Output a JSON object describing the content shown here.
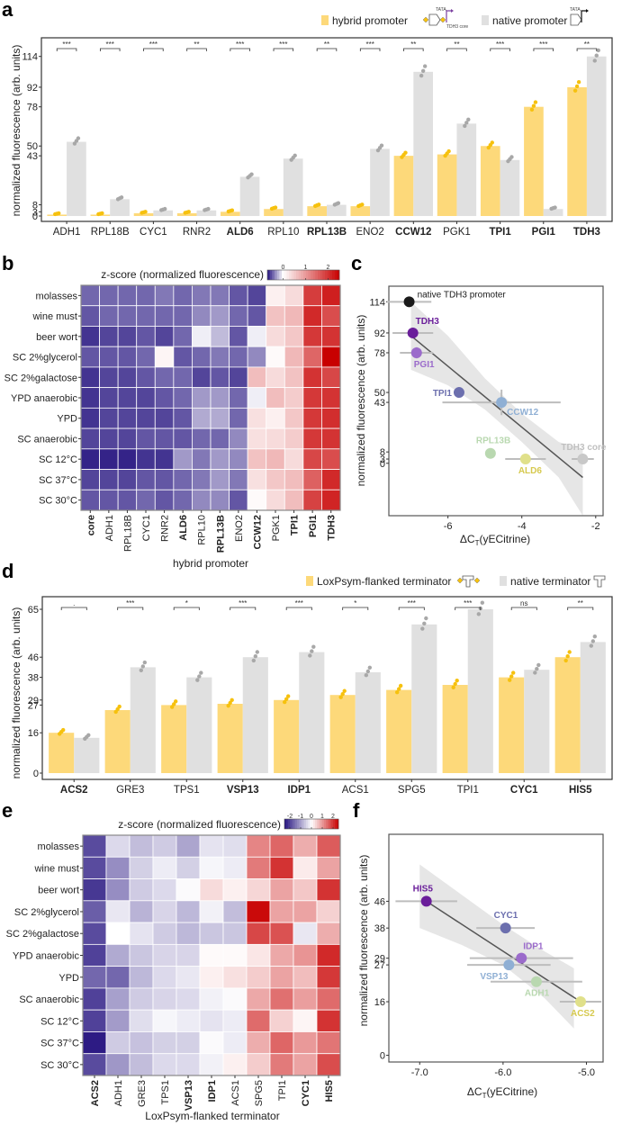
{
  "figure": {
    "panel_letters": [
      "a",
      "b",
      "c",
      "d",
      "e",
      "f"
    ]
  },
  "chart_data": [
    {
      "panel": "a",
      "type": "bar",
      "ylabel": "normalized fluorescence (arb. units)",
      "xlabel": "",
      "yticks": [
        0,
        3,
        8,
        43,
        50,
        78,
        92,
        114
      ],
      "ylim": [
        0,
        128
      ],
      "categories": [
        "ADH1",
        "RPL18B",
        "CYC1",
        "RNR2",
        "ALD6",
        "RPL10",
        "RPL13B",
        "ENO2",
        "CCW12",
        "PGK1",
        "TPI1",
        "PGI1",
        "TDH3"
      ],
      "bold_categories": [
        "ALD6",
        "RPL13B",
        "CCW12",
        "TPI1",
        "PGI1",
        "TDH3"
      ],
      "series": [
        {
          "name": "hybrid promoter",
          "color": "#FDD97A",
          "point_color": "#F6C10E",
          "values": [
            1,
            1,
            2,
            2,
            3,
            5,
            7,
            7,
            43,
            44,
            50,
            78,
            92
          ]
        },
        {
          "name": "native promoter",
          "color": "#E0E0E0",
          "point_color": "#A8A8A8",
          "values": [
            53,
            12,
            4,
            4,
            28,
            41,
            8,
            48,
            103,
            66,
            40,
            5,
            114
          ]
        }
      ],
      "significance": [
        "***",
        "***",
        "***",
        "**",
        "***",
        "***",
        "**",
        "***",
        "**",
        "**",
        "***",
        "***",
        "**"
      ],
      "legend": {
        "position": "top-right",
        "hybrid_label": "hybrid promoter",
        "native_label": "native promoter",
        "icon_text_tata": "TATA",
        "icon_text_core": "TDH3 core"
      }
    },
    {
      "panel": "b",
      "type": "heatmap",
      "title": "z-score (normalized fluorescence)",
      "xlabel": "hybrid promoter",
      "legend_ticks": [
        0,
        1,
        2
      ],
      "zlim": [
        -0.7,
        2.5
      ],
      "rows": [
        "molasses",
        "wine must",
        "beer wort",
        "SC 2%glycerol",
        "SC 2%galactose",
        "YPD anaerobic",
        "YPD",
        "SC anaerobic",
        "SC 12°C",
        "SC 37°C",
        "SC 30°C"
      ],
      "columns": [
        "core",
        "ADH1",
        "RPL18B",
        "CYC1",
        "RNR2",
        "ALD6",
        "RPL10",
        "RPL13B",
        "ENO2",
        "CCW12",
        "PGK1",
        "TPI1",
        "PGI1",
        "TDH3"
      ],
      "bold_columns": [
        "core",
        "ALD6",
        "RPL13B",
        "CCW12",
        "TPI1",
        "PGI1",
        "TDH3"
      ],
      "values": [
        [
          -0.45,
          -0.45,
          -0.45,
          -0.45,
          -0.4,
          -0.45,
          -0.4,
          -0.4,
          -0.5,
          -0.55,
          0.15,
          0.35,
          1.9,
          2.2
        ],
        [
          -0.5,
          -0.45,
          -0.45,
          -0.45,
          -0.45,
          -0.45,
          -0.35,
          -0.3,
          -0.45,
          -0.5,
          0.6,
          0.7,
          2.1,
          1.75
        ],
        [
          -0.6,
          -0.55,
          -0.55,
          -0.5,
          -0.55,
          -0.45,
          -0.05,
          -0.2,
          -0.5,
          -0.05,
          0.35,
          0.55,
          1.95,
          2.0
        ],
        [
          -0.5,
          -0.5,
          -0.5,
          -0.45,
          0.1,
          -0.5,
          -0.45,
          -0.4,
          -0.45,
          -0.35,
          0.05,
          0.7,
          1.5,
          2.5
        ],
        [
          -0.6,
          -0.55,
          -0.55,
          -0.5,
          -0.45,
          -0.45,
          -0.55,
          -0.5,
          -0.55,
          0.65,
          0.35,
          0.6,
          2.0,
          1.8
        ],
        [
          -0.6,
          -0.55,
          -0.55,
          -0.55,
          -0.5,
          -0.45,
          -0.3,
          -0.3,
          -0.45,
          -0.05,
          0.65,
          0.5,
          1.95,
          2.0
        ],
        [
          -0.6,
          -0.55,
          -0.55,
          -0.55,
          -0.55,
          -0.5,
          -0.25,
          -0.25,
          -0.45,
          0.3,
          0.15,
          0.55,
          1.95,
          2.05
        ],
        [
          -0.55,
          -0.55,
          -0.55,
          -0.5,
          -0.5,
          -0.5,
          -0.45,
          -0.45,
          -0.35,
          0.3,
          0.35,
          0.5,
          1.95,
          2.0
        ],
        [
          -0.65,
          -0.65,
          -0.65,
          -0.6,
          -0.6,
          -0.3,
          -0.4,
          -0.3,
          -0.35,
          0.6,
          0.7,
          0.35,
          1.8,
          1.75
        ],
        [
          -0.55,
          -0.55,
          -0.55,
          -0.5,
          -0.5,
          -0.45,
          -0.4,
          -0.3,
          -0.4,
          0.3,
          0.55,
          0.65,
          1.55,
          2.1
        ],
        [
          -0.5,
          -0.5,
          -0.5,
          -0.45,
          -0.5,
          -0.45,
          -0.35,
          -0.35,
          -0.5,
          0.05,
          0.35,
          0.65,
          1.85,
          2.15
        ]
      ]
    },
    {
      "panel": "c",
      "type": "scatter",
      "xlabel": "ΔC_T(yECitrine)",
      "xlabel_main": "ΔC",
      "xlabel_sub": "T",
      "xlabel_rest": "(yECitrine)",
      "ylabel": "normalized fluorescence (arb. units)",
      "xticks": [
        -6,
        -4,
        -2
      ],
      "yticks": [
        0,
        3,
        8,
        43,
        50,
        78,
        92,
        114
      ],
      "xlim": [
        -7.6,
        -1.8
      ],
      "ylim": [
        -37,
        125
      ],
      "points": [
        {
          "label": "native TDH3 promoter",
          "x": -7.05,
          "y": 114,
          "xerr": 0.6,
          "yerr": 0,
          "color": "#1a1a1a",
          "label_color": "#1a1a1a"
        },
        {
          "label": "TDH3",
          "x": -6.95,
          "y": 92,
          "xerr": 0.55,
          "yerr": 2,
          "color": "#6A1E9A",
          "label_color": "#6A1E9A"
        },
        {
          "label": "PGI1",
          "x": -6.85,
          "y": 78,
          "xerr": 0.45,
          "yerr": 4,
          "color": "#9B6BCB",
          "label_color": "#9B6BCB"
        },
        {
          "label": "TPI1",
          "x": -5.7,
          "y": 50,
          "xerr": 0,
          "yerr": 1,
          "color": "#6C6FAE",
          "label_color": "#6C6FAE"
        },
        {
          "label": "CCW12",
          "x": -4.55,
          "y": 43,
          "xerr": 1.6,
          "yerr": 9,
          "color": "#8FAFD4",
          "label_color": "#8FAFD4"
        },
        {
          "label": "RPL13B",
          "x": -4.85,
          "y": 7,
          "xerr": 0,
          "yerr": 0,
          "color": "#B9D8B0",
          "label_color": "#B9D8B0"
        },
        {
          "label": "ALD6",
          "x": -3.9,
          "y": 3,
          "xerr": 0.55,
          "yerr": 0,
          "color": "#E0E08A",
          "label_color": "#D6C94E"
        },
        {
          "label": "TDH3 core",
          "x": -2.35,
          "y": 3,
          "xerr": 0.3,
          "yerr": 0,
          "color": "#C8C8C8",
          "label_color": "#C0C0C0"
        }
      ],
      "fit_line": {
        "x": [
          -7.0,
          -2.35
        ],
        "y": [
          90,
          -10
        ]
      },
      "confidence_band": {
        "x": [
          -7.0,
          -6.0,
          -5.0,
          -4.0,
          -3.0,
          -2.35
        ],
        "upper": [
          114,
          90,
          60,
          35,
          15,
          10
        ],
        "lower": [
          66,
          55,
          38,
          15,
          -10,
          -37
        ]
      }
    },
    {
      "panel": "d",
      "type": "bar",
      "ylabel": "normalized fluorescence (arb. units)",
      "xlabel": "",
      "yticks": [
        0,
        16,
        27,
        29,
        38,
        46,
        65
      ],
      "ylim": [
        0,
        70
      ],
      "categories": [
        "ACS2",
        "GRE3",
        "TPS1",
        "VSP13",
        "IDP1",
        "ACS1",
        "SPG5",
        "TPI1",
        "CYC1",
        "HIS5"
      ],
      "bold_categories": [
        "ACS2",
        "VSP13",
        "IDP1",
        "CYC1",
        "HIS5"
      ],
      "series": [
        {
          "name": "LoxPsym-flanked terminator",
          "color": "#FDD97A",
          "point_color": "#F6C10E",
          "values": [
            16,
            25,
            27,
            27.5,
            29,
            31,
            33,
            35,
            38,
            46
          ]
        },
        {
          "name": "native terminator",
          "color": "#E0E0E0",
          "point_color": "#A8A8A8",
          "values": [
            14,
            42,
            38,
            46,
            48,
            40,
            59,
            65,
            41,
            52
          ]
        }
      ],
      "significance": [
        ".",
        "***",
        "*",
        "***",
        "***",
        "*",
        "***",
        "***",
        "ns",
        "**"
      ],
      "legend": {
        "position": "top-right",
        "hybrid_label": "LoxPsym-flanked terminator",
        "native_label": "native terminator"
      }
    },
    {
      "panel": "e",
      "type": "heatmap",
      "title": "z-score (normalized fluorescence)",
      "xlabel": "LoxPsym-flanked terminator",
      "legend_ticks": [
        -2,
        -1,
        0,
        1,
        2
      ],
      "zlim": [
        -2.5,
        2.5
      ],
      "rows": [
        "molasses",
        "wine must",
        "beer wort",
        "SC 2%glycerol",
        "SC 2%galactose",
        "YPD anaerobic",
        "YPD",
        "SC anaerobic",
        "SC 12°C",
        "SC 37°C",
        "SC 30°C"
      ],
      "columns": [
        "ACS2",
        "ADH1",
        "GRE3",
        "TPS1",
        "VSP13",
        "IDP1",
        "ACS1",
        "SPG5",
        "TPI1",
        "CYC1",
        "HIS5"
      ],
      "bold_columns": [
        "ACS2",
        "VSP13",
        "IDP1",
        "CYC1",
        "HIS5"
      ],
      "values": [
        [
          -1.9,
          -0.4,
          -0.7,
          -0.55,
          -0.95,
          -0.3,
          -0.35,
          1.2,
          1.5,
          0.8,
          1.6
        ],
        [
          -1.9,
          -1.2,
          -0.5,
          -0.2,
          -0.5,
          -0.1,
          -0.2,
          1.3,
          2.0,
          0.2,
          0.9
        ],
        [
          -2.1,
          -1.2,
          -0.55,
          -0.4,
          -0.05,
          0.35,
          0.15,
          0.4,
          0.9,
          0.55,
          2.0
        ],
        [
          -1.7,
          -0.25,
          -0.8,
          -0.45,
          -0.75,
          -0.15,
          -0.7,
          2.4,
          0.9,
          0.9,
          0.45
        ],
        [
          -1.9,
          0.0,
          -0.3,
          -0.55,
          -0.75,
          -0.6,
          -0.6,
          1.8,
          1.7,
          -0.25,
          0.8
        ],
        [
          -2.0,
          -0.9,
          -0.6,
          -0.45,
          -0.45,
          0.05,
          0.05,
          0.25,
          0.85,
          1.05,
          2.1
        ],
        [
          -1.6,
          -1.6,
          -0.75,
          -0.4,
          -0.25,
          0.15,
          0.3,
          0.5,
          0.9,
          0.65,
          1.95
        ],
        [
          -2.0,
          -1.0,
          -0.55,
          -0.45,
          -0.4,
          -0.15,
          -0.05,
          0.85,
          1.4,
          0.95,
          1.45
        ],
        [
          -2.0,
          -1.05,
          -0.35,
          -0.1,
          -0.2,
          -0.3,
          -0.2,
          1.45,
          0.45,
          0.1,
          2.0
        ],
        [
          -2.4,
          -0.55,
          -0.65,
          -0.5,
          -0.5,
          -0.05,
          -0.2,
          0.8,
          1.5,
          1.0,
          1.35
        ],
        [
          -1.9,
          -1.1,
          -0.7,
          -0.4,
          -0.4,
          -0.15,
          0.15,
          0.5,
          1.3,
          0.9,
          1.75
        ]
      ]
    },
    {
      "panel": "f",
      "type": "scatter",
      "xlabel": "ΔC_T(yECitrine)",
      "xlabel_main": "ΔC",
      "xlabel_sub": "T",
      "xlabel_rest": "(yECitrine)",
      "ylabel": "normalized fluorescence (arb. units)",
      "xticks": [
        "-7.0",
        "-6.0",
        "-5.0"
      ],
      "xtick_values": [
        -7.0,
        -6.0,
        -5.0
      ],
      "yticks": [
        0,
        16,
        27,
        29,
        38,
        46
      ],
      "xlim": [
        -7.37,
        -4.8
      ],
      "ylim": [
        -2,
        66
      ],
      "points": [
        {
          "label": "HIS5",
          "x": -6.92,
          "y": 46,
          "xerr": 0.37,
          "color": "#6A1E9A",
          "label_color": "#6A1E9A"
        },
        {
          "label": "CYC1",
          "x": -5.97,
          "y": 38,
          "xerr": 0.35,
          "color": "#6C6FAE",
          "label_color": "#6C6FAE"
        },
        {
          "label": "IDP1",
          "x": -5.78,
          "y": 29,
          "xerr": 0.62,
          "color": "#9B6BCB",
          "label_color": "#9B6BCB"
        },
        {
          "label": "VSP13",
          "x": -5.93,
          "y": 27,
          "xerr": 0.5,
          "color": "#8FAFD4",
          "label_color": "#8FAFD4"
        },
        {
          "label": "ADH1",
          "x": -5.6,
          "y": 22,
          "xerr": 0.55,
          "color": "#B9D8B0",
          "label_color": "#B9D8B0"
        },
        {
          "label": "ACS2",
          "x": -5.07,
          "y": 16,
          "xerr": 0.25,
          "color": "#E0E08A",
          "label_color": "#D6C94E"
        }
      ],
      "fit_line": {
        "x": [
          -6.92,
          -5.07
        ],
        "y": [
          46,
          16
        ]
      },
      "confidence_band": {
        "x": [
          -7.0,
          -6.5,
          -6.0,
          -5.5,
          -5.15
        ],
        "upper": [
          57,
          48,
          39,
          31,
          26
        ],
        "lower": [
          38,
          33,
          27,
          17,
          8
        ]
      }
    }
  ]
}
